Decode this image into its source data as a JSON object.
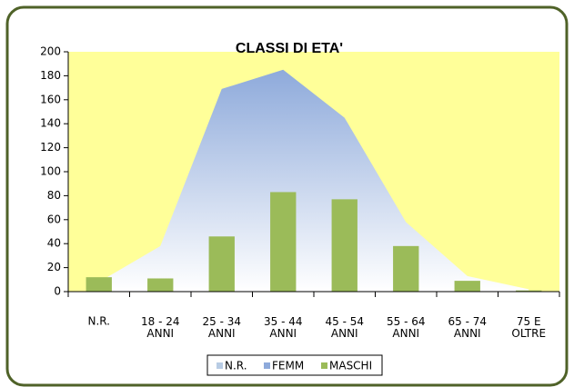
{
  "chart_data": {
    "type": "area_bar",
    "title": "CLASSI DI ETA'",
    "categories": [
      "N.R.",
      "18 - 24\nANNI",
      "25 - 34\nANNI",
      "35 - 44\nANNI",
      "45 - 54\nANNI",
      "55 - 64\nANNI",
      "65 - 74\nANNI",
      "75 E\nOLTRE"
    ],
    "series": [
      {
        "name": "N.R.",
        "color": "#b8cce4",
        "kind": "area",
        "values": [
          null,
          null,
          null,
          null,
          null,
          null,
          null,
          null
        ]
      },
      {
        "name": "FEMM",
        "color": "#8eaadb",
        "kind": "area",
        "values": [
          8,
          38,
          169,
          185,
          145,
          58,
          13,
          2
        ]
      },
      {
        "name": "MASCHI",
        "color": "#9bbb59",
        "kind": "bar",
        "values": [
          12,
          11,
          46,
          83,
          77,
          38,
          9,
          1
        ]
      }
    ],
    "ylim": [
      0,
      200
    ],
    "yticks": [
      0,
      20,
      40,
      60,
      80,
      100,
      120,
      140,
      160,
      180,
      200
    ],
    "plot_background": "#ffff99",
    "legend": "bottom"
  }
}
